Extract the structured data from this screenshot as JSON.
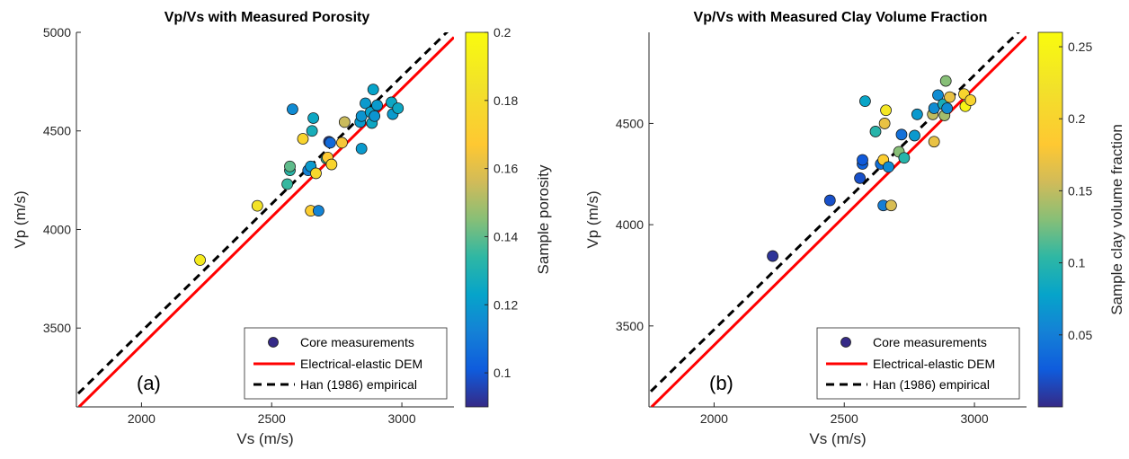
{
  "chart_data": [
    {
      "type": "scatter",
      "panel_label": "(a)",
      "title": "Vp/Vs with Measured Porosity",
      "xlabel": "Vs (m/s)",
      "ylabel": "Vp (m/s)",
      "xlim": [
        1750,
        3200
      ],
      "ylim": [
        3100,
        5000
      ],
      "xticks": [
        2000,
        2500,
        3000
      ],
      "yticks": [
        3500,
        4000,
        4500,
        5000
      ],
      "colorbar": {
        "label": "Sample porosity",
        "range": [
          0.09,
          0.2
        ],
        "ticks": [
          0.1,
          0.12,
          0.14,
          0.16,
          0.18,
          0.2
        ],
        "tick_labels": [
          "0.1",
          "0.12",
          "0.14",
          "0.16",
          "0.18",
          "0.2"
        ]
      },
      "legend": {
        "placement": "bottom-right",
        "entries": [
          "Core measurements",
          "Electrical-elastic DEM",
          "Han (1986) empirical"
        ]
      },
      "lines": [
        {
          "name": "Electrical-elastic DEM",
          "color": "#ff0000",
          "style": "solid",
          "x": [
            1760,
            3200
          ],
          "y": [
            3100,
            4975
          ]
        },
        {
          "name": "Han (1986) empirical",
          "color": "#000000",
          "style": "dashed",
          "x": [
            1720,
            3180
          ],
          "y": [
            3120,
            5010
          ]
        }
      ],
      "points": [
        {
          "x": 2225,
          "y": 3845,
          "c": 0.19
        },
        {
          "x": 2445,
          "y": 4120,
          "c": 0.185
        },
        {
          "x": 2560,
          "y": 4230,
          "c": 0.135
        },
        {
          "x": 2570,
          "y": 4300,
          "c": 0.133
        },
        {
          "x": 2570,
          "y": 4320,
          "c": 0.14
        },
        {
          "x": 2580,
          "y": 4610,
          "c": 0.115
        },
        {
          "x": 2620,
          "y": 4460,
          "c": 0.175
        },
        {
          "x": 2640,
          "y": 4300,
          "c": 0.112
        },
        {
          "x": 2650,
          "y": 4320,
          "c": 0.12
        },
        {
          "x": 2650,
          "y": 4095,
          "c": 0.17
        },
        {
          "x": 2655,
          "y": 4500,
          "c": 0.128
        },
        {
          "x": 2660,
          "y": 4565,
          "c": 0.125
        },
        {
          "x": 2670,
          "y": 4285,
          "c": 0.178
        },
        {
          "x": 2680,
          "y": 4095,
          "c": 0.113
        },
        {
          "x": 2710,
          "y": 4360,
          "c": 0.135
        },
        {
          "x": 2715,
          "y": 4365,
          "c": 0.168
        },
        {
          "x": 2720,
          "y": 4445,
          "c": 0.095
        },
        {
          "x": 2725,
          "y": 4440,
          "c": 0.105
        },
        {
          "x": 2730,
          "y": 4330,
          "c": 0.175
        },
        {
          "x": 2770,
          "y": 4440,
          "c": 0.165
        },
        {
          "x": 2780,
          "y": 4545,
          "c": 0.155
        },
        {
          "x": 2840,
          "y": 4545,
          "c": 0.12
        },
        {
          "x": 2845,
          "y": 4575,
          "c": 0.118
        },
        {
          "x": 2845,
          "y": 4410,
          "c": 0.12
        },
        {
          "x": 2860,
          "y": 4640,
          "c": 0.12
        },
        {
          "x": 2880,
          "y": 4595,
          "c": 0.122
        },
        {
          "x": 2885,
          "y": 4540,
          "c": 0.125
        },
        {
          "x": 2890,
          "y": 4710,
          "c": 0.123
        },
        {
          "x": 2895,
          "y": 4575,
          "c": 0.118
        },
        {
          "x": 2905,
          "y": 4630,
          "c": 0.12
        },
        {
          "x": 2960,
          "y": 4645,
          "c": 0.125
        },
        {
          "x": 2965,
          "y": 4585,
          "c": 0.12
        },
        {
          "x": 2985,
          "y": 4615,
          "c": 0.125
        }
      ]
    },
    {
      "type": "scatter",
      "panel_label": "(b)",
      "title": "Vp/Vs with Measured Clay Volume Fraction",
      "xlabel": "Vs (m/s)",
      "ylabel": "Vp (m/s)",
      "xlim": [
        1750,
        3200
      ],
      "ylim": [
        3100,
        4950
      ],
      "xticks": [
        2000,
        2500,
        3000
      ],
      "yticks": [
        3500,
        4000,
        4500
      ],
      "colorbar": {
        "label": "Sample clay volume fraction",
        "range": [
          0.0,
          0.26
        ],
        "ticks": [
          0.05,
          0.1,
          0.15,
          0.2,
          0.25
        ],
        "tick_labels": [
          "0.05",
          "0.1",
          "0.15",
          "0.2",
          "0.25"
        ]
      },
      "legend": {
        "placement": "bottom-right",
        "entries": [
          "Core measurements",
          "Electrical-elastic DEM",
          "Han (1986) empirical"
        ]
      },
      "lines": [
        {
          "name": "Electrical-elastic DEM",
          "color": "#ff0000",
          "style": "solid",
          "x": [
            1760,
            3200
          ],
          "y": [
            3100,
            4930
          ]
        },
        {
          "name": "Han (1986) empirical",
          "color": "#000000",
          "style": "dashed",
          "x": [
            1720,
            3180
          ],
          "y": [
            3130,
            4965
          ]
        }
      ],
      "points": [
        {
          "x": 2225,
          "y": 3845,
          "c": 0.005
        },
        {
          "x": 2445,
          "y": 4120,
          "c": 0.02
        },
        {
          "x": 2560,
          "y": 4230,
          "c": 0.02
        },
        {
          "x": 2570,
          "y": 4300,
          "c": 0.03
        },
        {
          "x": 2570,
          "y": 4320,
          "c": 0.025
        },
        {
          "x": 2580,
          "y": 4610,
          "c": 0.08
        },
        {
          "x": 2620,
          "y": 4460,
          "c": 0.1
        },
        {
          "x": 2640,
          "y": 4300,
          "c": 0.04
        },
        {
          "x": 2650,
          "y": 4320,
          "c": 0.19
        },
        {
          "x": 2650,
          "y": 4095,
          "c": 0.05
        },
        {
          "x": 2655,
          "y": 4500,
          "c": 0.17
        },
        {
          "x": 2660,
          "y": 4565,
          "c": 0.23
        },
        {
          "x": 2670,
          "y": 4285,
          "c": 0.06
        },
        {
          "x": 2680,
          "y": 4095,
          "c": 0.16
        },
        {
          "x": 2710,
          "y": 4360,
          "c": 0.13
        },
        {
          "x": 2720,
          "y": 4445,
          "c": 0.04
        },
        {
          "x": 2730,
          "y": 4330,
          "c": 0.1
        },
        {
          "x": 2770,
          "y": 4440,
          "c": 0.07
        },
        {
          "x": 2780,
          "y": 4545,
          "c": 0.07
        },
        {
          "x": 2840,
          "y": 4545,
          "c": 0.15
        },
        {
          "x": 2845,
          "y": 4575,
          "c": 0.06
        },
        {
          "x": 2845,
          "y": 4410,
          "c": 0.17
        },
        {
          "x": 2860,
          "y": 4640,
          "c": 0.06
        },
        {
          "x": 2880,
          "y": 4595,
          "c": 0.09
        },
        {
          "x": 2885,
          "y": 4540,
          "c": 0.14
        },
        {
          "x": 2890,
          "y": 4710,
          "c": 0.13
        },
        {
          "x": 2895,
          "y": 4575,
          "c": 0.06
        },
        {
          "x": 2905,
          "y": 4630,
          "c": 0.17
        },
        {
          "x": 2960,
          "y": 4645,
          "c": 0.2
        },
        {
          "x": 2965,
          "y": 4585,
          "c": 0.25
        },
        {
          "x": 2985,
          "y": 4615,
          "c": 0.2
        }
      ]
    }
  ]
}
